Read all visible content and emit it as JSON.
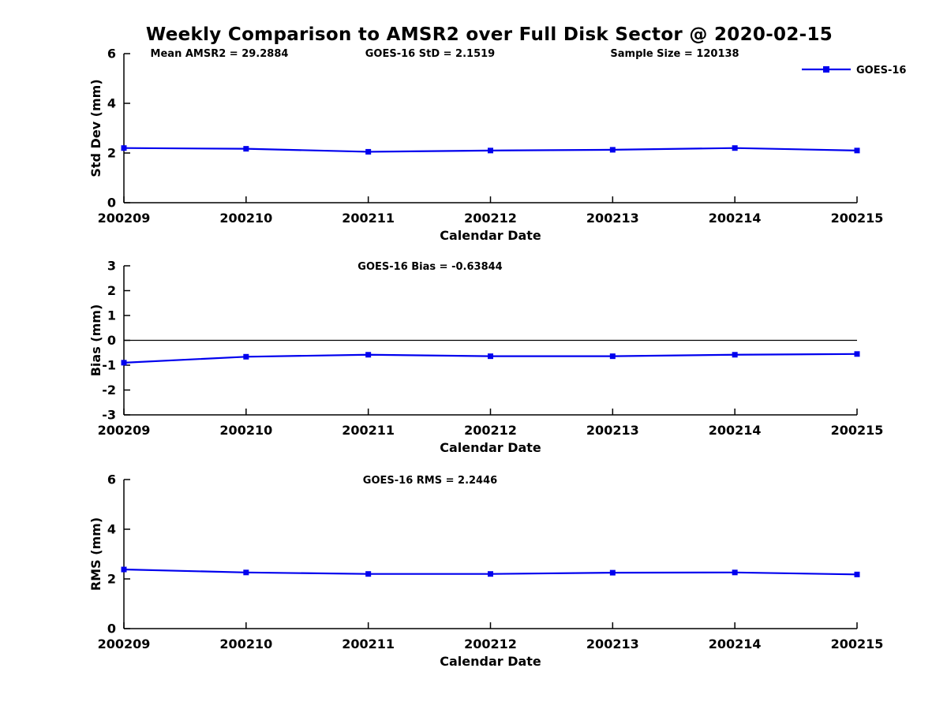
{
  "title": "Weekly Comparison to AMSR2 over Full Disk Sector @ 2020-02-15",
  "header": {
    "annotations": [
      "Mean AMSR2 = 29.2884",
      "GOES-16 StD = 2.1519",
      "Sample Size = 120138"
    ]
  },
  "legend": {
    "label": "GOES-16",
    "color": "#0000EE",
    "position": "top-right"
  },
  "axis_color": "#000000",
  "chart_data": [
    {
      "type": "line",
      "title": "",
      "x": [
        "200209",
        "200210",
        "200211",
        "200212",
        "200213",
        "200214",
        "200215"
      ],
      "series": [
        {
          "name": "GOES-16",
          "color": "#0000EE",
          "marker": "square",
          "values": [
            2.2,
            2.17,
            2.05,
            2.1,
            2.13,
            2.2,
            2.1
          ]
        }
      ],
      "xlabel": "Calendar Date",
      "ylabel": "Std Dev (mm)",
      "ylim": [
        0,
        6
      ],
      "yticks": [
        0,
        2,
        4,
        6
      ],
      "zero_line": false,
      "grid": false,
      "legend_position": "top-right"
    },
    {
      "type": "line",
      "title": "GOES-16 Bias  = -0.63844",
      "x": [
        "200209",
        "200210",
        "200211",
        "200212",
        "200213",
        "200214",
        "200215"
      ],
      "series": [
        {
          "name": "GOES-16",
          "color": "#0000EE",
          "marker": "square",
          "values": [
            -0.9,
            -0.66,
            -0.58,
            -0.64,
            -0.64,
            -0.58,
            -0.55
          ]
        }
      ],
      "xlabel": "Calendar Date",
      "ylabel": "Bias (mm)",
      "ylim": [
        -3,
        3
      ],
      "yticks": [
        3,
        2,
        1,
        0,
        -1,
        -2,
        -3
      ],
      "zero_line": true,
      "grid": false
    },
    {
      "type": "line",
      "title": "GOES-16 RMS = 2.2446",
      "x": [
        "200209",
        "200210",
        "200211",
        "200212",
        "200213",
        "200214",
        "200215"
      ],
      "series": [
        {
          "name": "GOES-16",
          "color": "#0000EE",
          "marker": "square",
          "values": [
            2.38,
            2.26,
            2.2,
            2.2,
            2.25,
            2.26,
            2.18
          ]
        }
      ],
      "xlabel": "Calendar Date",
      "ylabel": "RMS (mm)",
      "ylim": [
        0,
        6
      ],
      "yticks": [
        0,
        2,
        4,
        6
      ],
      "zero_line": false,
      "grid": false
    }
  ]
}
